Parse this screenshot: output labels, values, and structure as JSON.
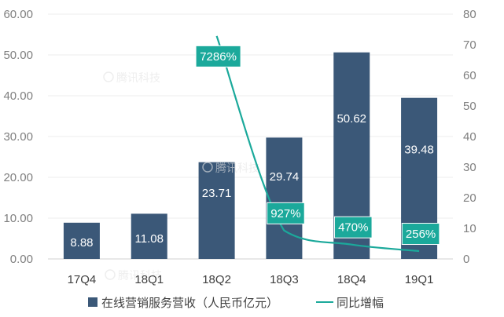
{
  "chart_data": {
    "type": "bar",
    "categories": [
      "17Q4",
      "18Q1",
      "18Q2",
      "18Q3",
      "18Q4",
      "19Q1"
    ],
    "series": [
      {
        "name": "在线营销服务营收（人民币亿元）",
        "type": "bar",
        "axis": "left",
        "color": "#3b5878",
        "values": [
          8.88,
          11.08,
          23.71,
          29.74,
          50.62,
          39.48
        ]
      },
      {
        "name": "同比增幅",
        "type": "line",
        "axis": "right",
        "color": "#1ba99b",
        "values": [
          null,
          null,
          72.86,
          9.27,
          4.7,
          2.56
        ],
        "labels": [
          null,
          null,
          "7286%",
          "927%",
          "470%",
          "256%"
        ]
      }
    ],
    "y_left": {
      "range": [
        0,
        60
      ],
      "ticks": [
        "0.00",
        "10.00",
        "20.00",
        "30.00",
        "40.00",
        "50.00",
        "60.00"
      ]
    },
    "y_right": {
      "range": [
        0,
        80
      ],
      "ticks": [
        "0",
        "10",
        "20",
        "30",
        "40",
        "50",
        "60",
        "70",
        "80"
      ]
    },
    "title": "",
    "xlabel": "",
    "ylabel": "",
    "grid": true,
    "legend": "bottom"
  },
  "watermark": {
    "text": "腾讯科技"
  }
}
